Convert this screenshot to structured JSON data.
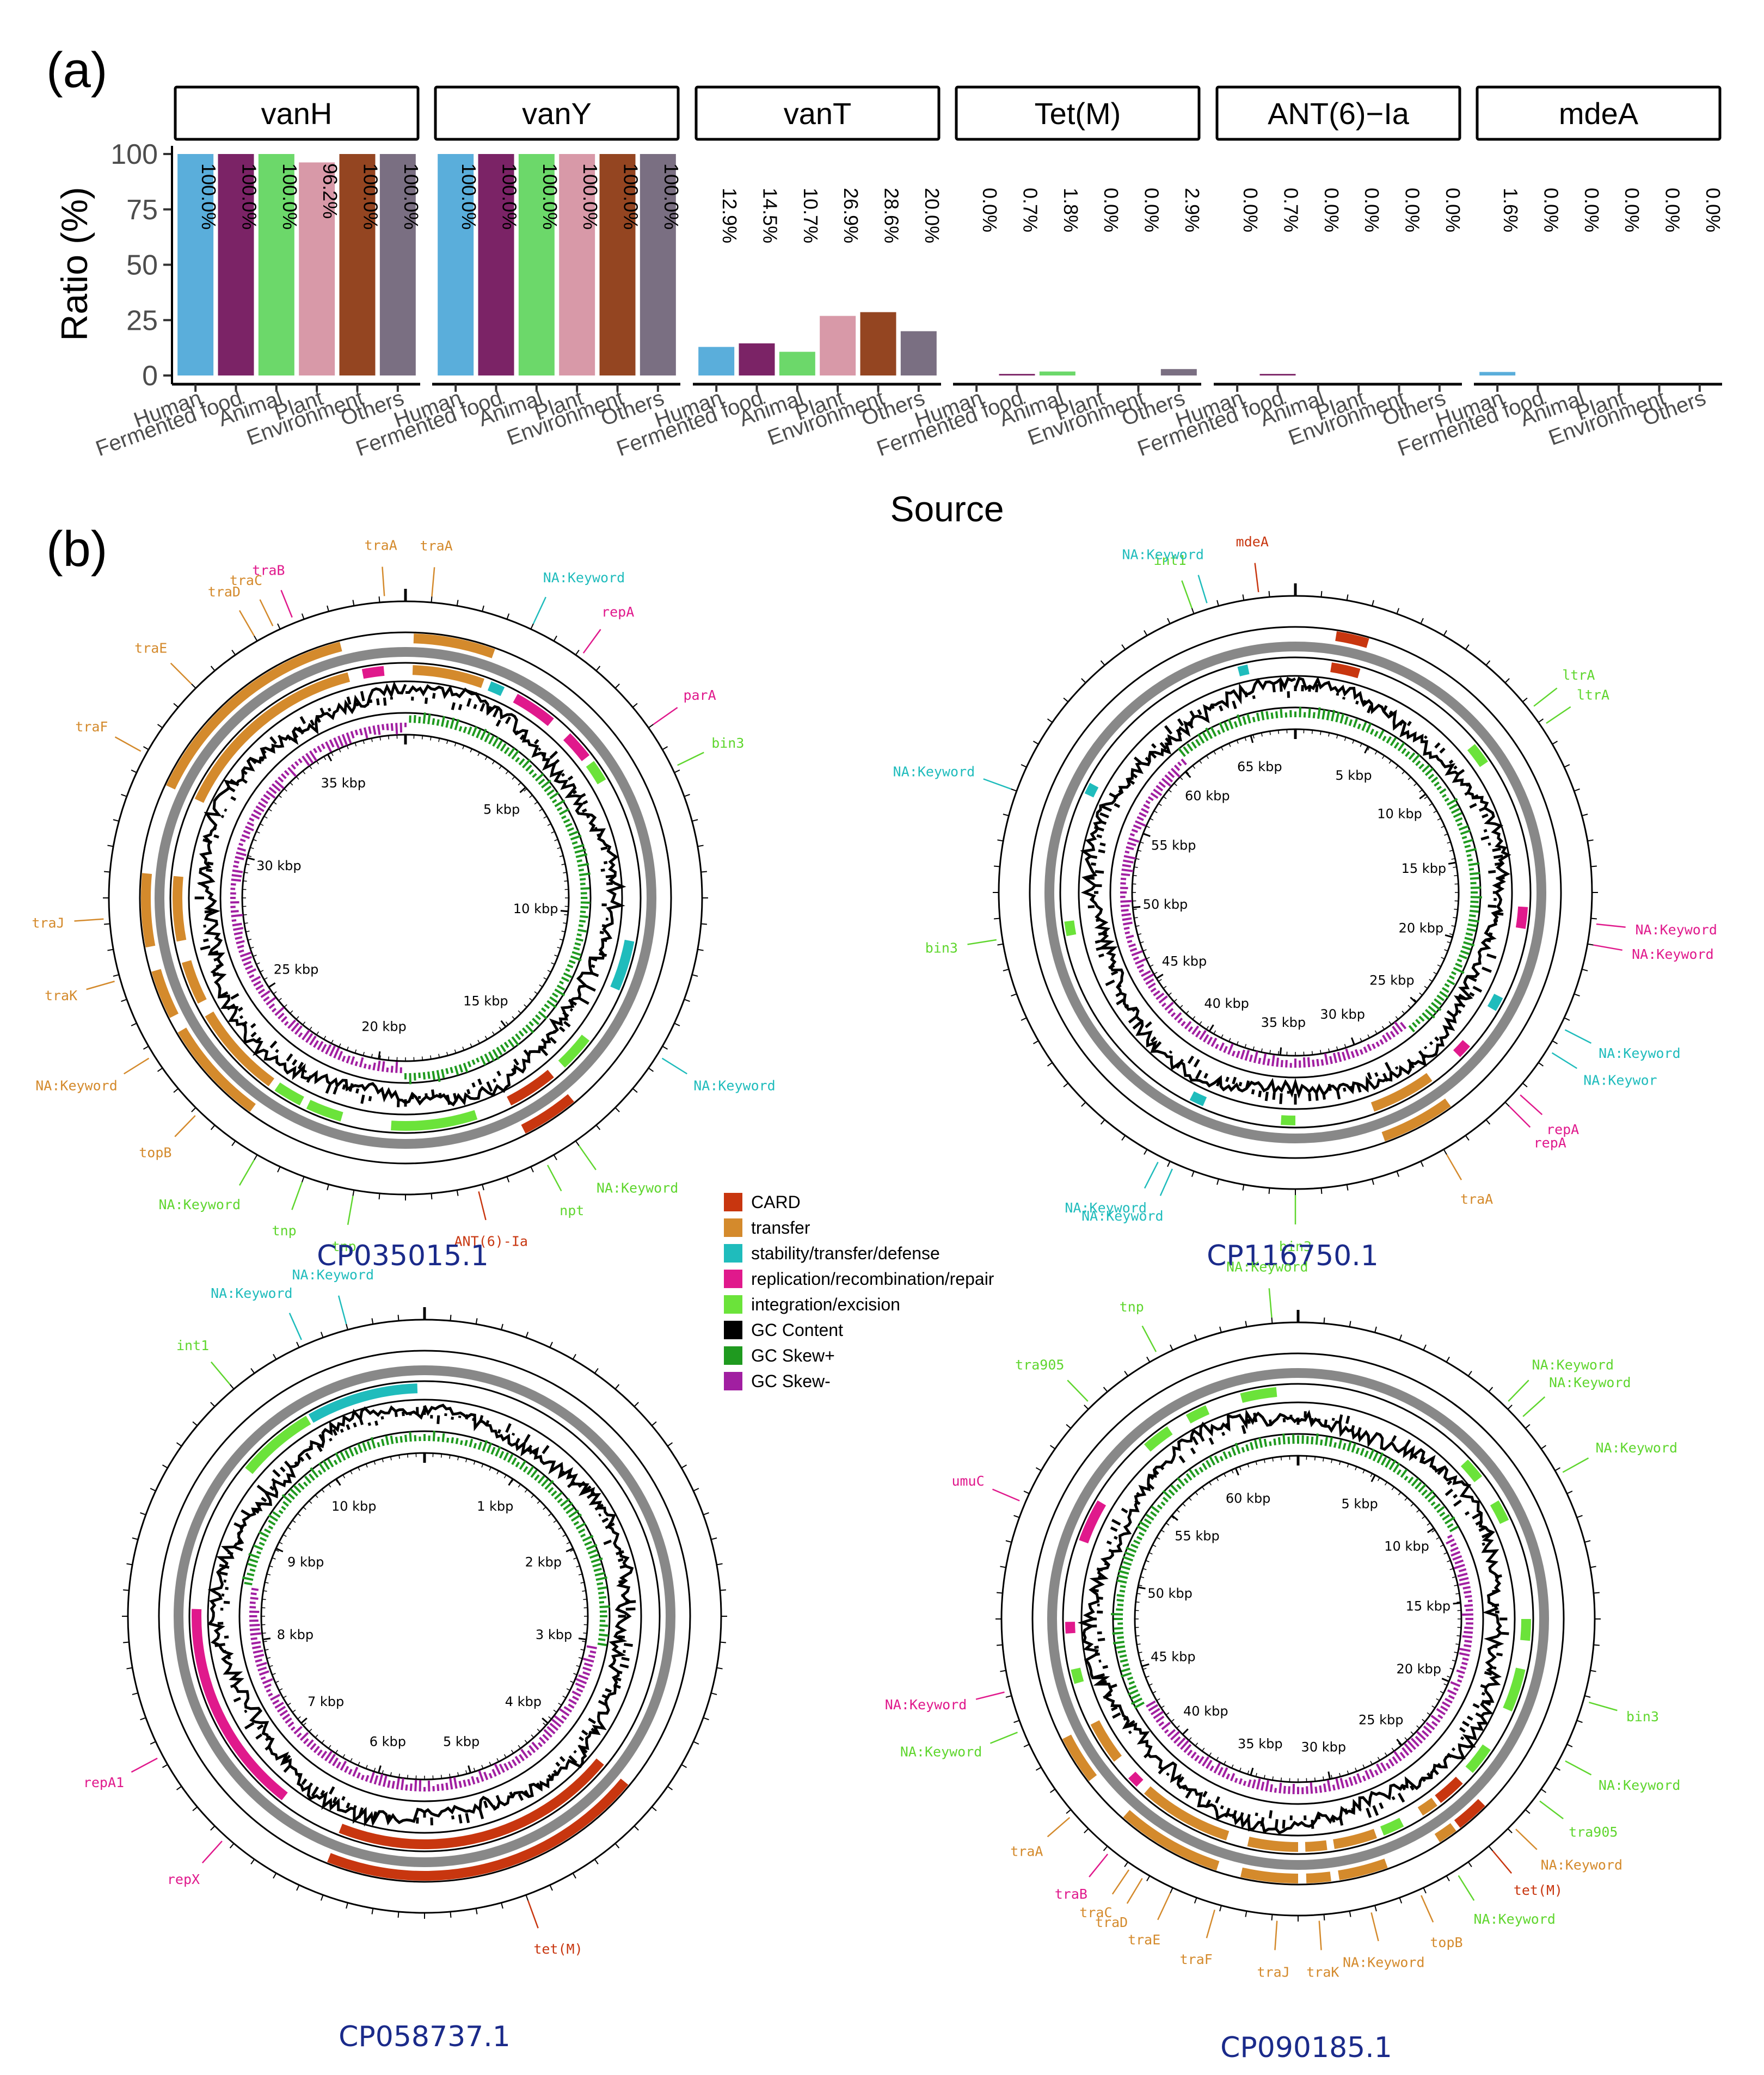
{
  "panel_a": {
    "label": "(a)",
    "ylabel": "Ratio (%)",
    "xlabel": "Source",
    "yticks": [
      "100",
      "75",
      "50",
      "25",
      "0"
    ]
  },
  "panel_b": {
    "label": "(b)"
  },
  "colors": {
    "Human": "#5aaedb",
    "Fermented food": "#7b2366",
    "Animal": "#6cd86a",
    "Plant": "#d899a8",
    "Environment": "#944521",
    "Others": "#7a6f82",
    "CARD": "#c8360f",
    "transfer": "#d48a2c",
    "stability/transfer/defense": "#1fbcbc",
    "replication/recombination/repair": "#e0198c",
    "integration/excision": "#6be33a",
    "GC Content": "#000000",
    "GC Skew+": "#1f9a1f",
    "GC Skew-": "#a11fa1"
  },
  "chart_data": [
    {
      "type": "bar",
      "title": "vanH",
      "categories": [
        "Human",
        "Fermented food",
        "Animal",
        "Plant",
        "Environment",
        "Others"
      ],
      "values": [
        100.0,
        100.0,
        100.0,
        96.2,
        100.0,
        100.0
      ],
      "labels": [
        "100.0%",
        "100.0%",
        "100.0%",
        "96.2%",
        "100.0%",
        "100.0%"
      ],
      "xlabel": "Source",
      "ylabel": "Ratio (%)",
      "ylim": [
        0,
        100
      ]
    },
    {
      "type": "bar",
      "title": "vanY",
      "categories": [
        "Human",
        "Fermented food",
        "Animal",
        "Plant",
        "Environment",
        "Others"
      ],
      "values": [
        100.0,
        100.0,
        100.0,
        100.0,
        100.0,
        100.0
      ],
      "labels": [
        "100.0%",
        "100.0%",
        "100.0%",
        "100.0%",
        "100.0%",
        "100.0%"
      ],
      "xlabel": "Source",
      "ylabel": "Ratio (%)",
      "ylim": [
        0,
        100
      ]
    },
    {
      "type": "bar",
      "title": "vanT",
      "categories": [
        "Human",
        "Fermented food",
        "Animal",
        "Plant",
        "Environment",
        "Others"
      ],
      "values": [
        12.9,
        14.5,
        10.7,
        26.9,
        28.6,
        20.0
      ],
      "labels": [
        "12.9%",
        "14.5%",
        "10.7%",
        "26.9%",
        "28.6%",
        "20.0%"
      ],
      "xlabel": "Source",
      "ylabel": "Ratio (%)",
      "ylim": [
        0,
        100
      ]
    },
    {
      "type": "bar",
      "title": "Tet(M)",
      "categories": [
        "Human",
        "Fermented food",
        "Animal",
        "Plant",
        "Environment",
        "Others"
      ],
      "values": [
        0.0,
        0.7,
        1.8,
        0.0,
        0.0,
        2.9
      ],
      "labels": [
        "0.0%",
        "0.7%",
        "1.8%",
        "0.0%",
        "0.0%",
        "2.9%"
      ],
      "xlabel": "Source",
      "ylabel": "Ratio (%)",
      "ylim": [
        0,
        100
      ]
    },
    {
      "type": "bar",
      "title": "ANT(6)−Ia",
      "categories": [
        "Human",
        "Fermented food",
        "Animal",
        "Plant",
        "Environment",
        "Others"
      ],
      "values": [
        0.0,
        0.7,
        0.0,
        0.0,
        0.0,
        0.0
      ],
      "labels": [
        "0.0%",
        "0.7%",
        "0.0%",
        "0.0%",
        "0.0%",
        "0.0%"
      ],
      "xlabel": "Source",
      "ylabel": "Ratio (%)",
      "ylim": [
        0,
        100
      ]
    },
    {
      "type": "bar",
      "title": "mdeA",
      "categories": [
        "Human",
        "Fermented food",
        "Animal",
        "Plant",
        "Environment",
        "Others"
      ],
      "values": [
        1.6,
        0.0,
        0.0,
        0.0,
        0.0,
        0.0
      ],
      "labels": [
        "1.6%",
        "0.0%",
        "0.0%",
        "0.0%",
        "0.0%",
        "0.0%"
      ],
      "xlabel": "Source",
      "ylabel": "Ratio (%)",
      "ylim": [
        0,
        100
      ]
    },
    {
      "type": "circular-genome-map",
      "title": "CP035015.1",
      "length_kbp": 38,
      "ticks_kbp": [
        5,
        10,
        15,
        20,
        25,
        30,
        35
      ],
      "tick_labels": [
        "5 kbp",
        "10 kbp",
        "15 kbp",
        "20 kbp",
        "25 kbp",
        "30 kbp",
        "35 kbp"
      ],
      "features": [
        {
          "s": 0.5,
          "e": 5.5,
          "cat": "transfer"
        },
        {
          "s": 6.0,
          "e": 7.0,
          "cat": "stability/transfer/defense"
        },
        {
          "s": 8.0,
          "e": 11.0,
          "cat": "replication/recombination/repair"
        },
        {
          "s": 12.5,
          "e": 14.5,
          "cat": "replication/recombination/repair"
        },
        {
          "s": 15.0,
          "e": 16.5,
          "cat": "integration/excision"
        },
        {
          "s": 28.0,
          "e": 31.5,
          "cat": "stability/transfer/defense"
        },
        {
          "s": 35.5,
          "e": 38.0,
          "cat": "integration/excision"
        },
        {
          "s": 39.0,
          "e": 42.5,
          "cat": "CARD"
        },
        {
          "s": 45.0,
          "e": 51.0,
          "cat": "integration/excision"
        },
        {
          "s": 54.5,
          "e": 57.0,
          "cat": "integration/excision"
        },
        {
          "s": 57.5,
          "e": 59.5,
          "cat": "integration/excision"
        },
        {
          "s": 60.0,
          "e": 66.5,
          "cat": "transfer"
        },
        {
          "s": 67.5,
          "e": 70.5,
          "cat": "transfer"
        },
        {
          "s": 72.0,
          "e": 76.5,
          "cat": "transfer"
        },
        {
          "s": 82.0,
          "e": 96.0,
          "cat": "transfer"
        },
        {
          "s": 97.0,
          "e": 98.5,
          "cat": "replication/recombination/repair"
        }
      ],
      "labels": [
        {
          "t": "traB",
          "a": -22,
          "cat": "replication/recombination/repair"
        },
        {
          "t": "traA",
          "a": -4,
          "cat": "transfer"
        },
        {
          "t": "traA",
          "a": 5,
          "cat": "transfer"
        },
        {
          "t": "NA:Keyword",
          "a": 25,
          "cat": "stability/transfer/defense"
        },
        {
          "t": "repA",
          "a": 36,
          "cat": "replication/recombination/repair"
        },
        {
          "t": "parA",
          "a": 55,
          "cat": "replication/recombination/repair"
        },
        {
          "t": "bin3",
          "a": 64,
          "cat": "integration/excision"
        },
        {
          "t": "NA:Keyword",
          "a": 122,
          "cat": "stability/transfer/defense"
        },
        {
          "t": "NA:Keyword",
          "a": 145,
          "cat": "integration/excision"
        },
        {
          "t": "npt",
          "a": 152,
          "cat": "integration/excision"
        },
        {
          "t": "ANT(6)-Ia",
          "a": 166,
          "cat": "CARD"
        },
        {
          "t": "tnp",
          "a": 190,
          "cat": "integration/excision"
        },
        {
          "t": "tnp",
          "a": 200,
          "cat": "integration/excision"
        },
        {
          "t": "NA:Keyword",
          "a": 210,
          "cat": "integration/excision"
        },
        {
          "t": "topB",
          "a": 224,
          "cat": "transfer"
        },
        {
          "t": "NA:Keyword",
          "a": 238,
          "cat": "transfer"
        },
        {
          "t": "traK",
          "a": 254,
          "cat": "transfer"
        },
        {
          "t": "traJ",
          "a": 266,
          "cat": "transfer"
        },
        {
          "t": "traF",
          "a": 299,
          "cat": "transfer"
        },
        {
          "t": "traE",
          "a": 315,
          "cat": "transfer"
        },
        {
          "t": "traD",
          "a": 330,
          "cat": "transfer"
        },
        {
          "t": "traC",
          "a": 334,
          "cat": "transfer"
        }
      ]
    },
    {
      "type": "circular-genome-map",
      "title": "CP116750.1",
      "length_kbp": 68,
      "ticks_kbp": [
        5,
        10,
        15,
        20,
        25,
        30,
        35,
        40,
        45,
        50,
        55,
        60,
        65
      ],
      "tick_labels": [
        "5 kbp",
        "10 kbp",
        "15 kbp",
        "20 kbp",
        "25 kbp",
        "30 kbp",
        "35 kbp",
        "40 kbp",
        "45 kbp",
        "50 kbp",
        "55 kbp",
        "60 kbp",
        "65 kbp"
      ],
      "features": [
        {
          "s": 2.5,
          "e": 4.5,
          "cat": "CARD"
        },
        {
          "s": 14.0,
          "e": 15.5,
          "cat": "integration/excision"
        },
        {
          "s": 26.0,
          "e": 27.5,
          "cat": "replication/recombination/repair"
        },
        {
          "s": 32.5,
          "e": 33.5,
          "cat": "stability/transfer/defense"
        },
        {
          "s": 36.5,
          "e": 37.5,
          "cat": "replication/recombination/repair"
        },
        {
          "s": 40.0,
          "e": 44.5,
          "cat": "transfer"
        },
        {
          "s": 50.0,
          "e": 51.0,
          "cat": "integration/excision"
        },
        {
          "s": 56.5,
          "e": 57.5,
          "cat": "stability/transfer/defense"
        },
        {
          "s": 72.0,
          "e": 73.0,
          "cat": "integration/excision"
        },
        {
          "s": 82.0,
          "e": 82.8,
          "cat": "stability/transfer/defense"
        },
        {
          "s": 96.0,
          "e": 96.7,
          "cat": "stability/transfer/defense"
        }
      ],
      "labels": [
        {
          "t": "int1",
          "a": -20,
          "cat": "integration/excision"
        },
        {
          "t": "NA:Keyword",
          "a": -17,
          "cat": "stability/transfer/defense"
        },
        {
          "t": "mdeA",
          "a": -7,
          "cat": "CARD"
        },
        {
          "t": "ltrA",
          "a": 52,
          "cat": "integration/excision"
        },
        {
          "t": "ltrA",
          "a": 56,
          "cat": "integration/excision"
        },
        {
          "t": "NA:Keyword",
          "a": 96,
          "cat": "replication/recombination/repair"
        },
        {
          "t": "NA:Keyword",
          "a": 100,
          "cat": "replication/recombination/repair"
        },
        {
          "t": "NA:Keyword",
          "a": 117,
          "cat": "stability/transfer/defense"
        },
        {
          "t": "NA:Keywor",
          "a": 122,
          "cat": "stability/transfer/defense"
        },
        {
          "t": "repA",
          "a": 132,
          "cat": "replication/recombination/repair"
        },
        {
          "t": "repA",
          "a": 135,
          "cat": "replication/recombination/repair"
        },
        {
          "t": "traA",
          "a": 150,
          "cat": "transfer"
        },
        {
          "t": "bin3",
          "a": 180,
          "cat": "integration/excision"
        },
        {
          "t": "NA:Keyword",
          "a": 204,
          "cat": "stability/transfer/defense"
        },
        {
          "t": "NA:Keyword",
          "a": 207,
          "cat": "stability/transfer/defense"
        },
        {
          "t": "bin3",
          "a": 261,
          "cat": "integration/excision"
        },
        {
          "t": "NA:Keyword",
          "a": 290,
          "cat": "stability/transfer/defense"
        }
      ]
    },
    {
      "type": "circular-genome-map",
      "title": "CP058737.1",
      "length_kbp": 11,
      "ticks_kbp": [
        1,
        2,
        3,
        4,
        5,
        6,
        7,
        8,
        9,
        10
      ],
      "tick_labels": [
        "1 kbp",
        "2 kbp",
        "3 kbp",
        "4 kbp",
        "5 kbp",
        "6 kbp",
        "7 kbp",
        "8 kbp",
        "9 kbp",
        "10 kbp"
      ],
      "features": [
        {
          "s": 36.0,
          "e": 56.0,
          "cat": "CARD"
        },
        {
          "s": 60.5,
          "e": 75.5,
          "cat": "replication/recombination/repair"
        },
        {
          "s": 86.0,
          "e": 91.5,
          "cat": "integration/excision"
        },
        {
          "s": 91.7,
          "e": 99.5,
          "cat": "stability/transfer/defense"
        }
      ],
      "labels": [
        {
          "t": "NA:Keyword",
          "a": -15,
          "cat": "stability/transfer/defense"
        },
        {
          "t": "NA:Keyword",
          "a": -24,
          "cat": "stability/transfer/defense"
        },
        {
          "t": "int1",
          "a": -40,
          "cat": "integration/excision"
        },
        {
          "t": "repA1",
          "a": 242,
          "cat": "replication/recombination/repair"
        },
        {
          "t": "repX",
          "a": 222,
          "cat": "replication/recombination/repair"
        },
        {
          "t": "tet(M)",
          "a": 160,
          "cat": "CARD"
        }
      ]
    },
    {
      "type": "circular-genome-map",
      "title": "CP090185.1",
      "length_kbp": 64,
      "ticks_kbp": [
        5,
        10,
        15,
        20,
        25,
        30,
        35,
        40,
        45,
        50,
        55,
        60
      ],
      "tick_labels": [
        "5 kbp",
        "10 kbp",
        "15 kbp",
        "20 kbp",
        "25 kbp",
        "30 kbp",
        "35 kbp",
        "40 kbp",
        "45 kbp",
        "50 kbp",
        "55 kbp",
        "60 kbp"
      ],
      "features": [
        {
          "s": 96.0,
          "e": 98.5,
          "cat": "integration/excision"
        },
        {
          "s": 13.0,
          "e": 14.5,
          "cat": "integration/excision"
        },
        {
          "s": 16.5,
          "e": 18.0,
          "cat": "integration/excision"
        },
        {
          "s": 25.0,
          "e": 26.5,
          "cat": "integration/excision"
        },
        {
          "s": 28.5,
          "e": 31.5,
          "cat": "integration/excision"
        },
        {
          "s": 34.5,
          "e": 36.5,
          "cat": "integration/excision"
        },
        {
          "s": 37.5,
          "e": 39.5,
          "cat": "CARD"
        },
        {
          "s": 39.8,
          "e": 41.0,
          "cat": "transfer"
        },
        {
          "s": 42.5,
          "e": 44.0,
          "cat": "integration/excision"
        },
        {
          "s": 44.5,
          "e": 47.5,
          "cat": "transfer"
        },
        {
          "s": 48.0,
          "e": 49.5,
          "cat": "transfer"
        },
        {
          "s": 50.0,
          "e": 53.5,
          "cat": "transfer"
        },
        {
          "s": 55.0,
          "e": 61.5,
          "cat": "transfer"
        },
        {
          "s": 62.2,
          "e": 63.0,
          "cat": "replication/recombination/repair"
        },
        {
          "s": 64.5,
          "e": 67.5,
          "cat": "transfer"
        },
        {
          "s": 70.5,
          "e": 71.5,
          "cat": "integration/excision"
        },
        {
          "s": 74.0,
          "e": 74.8,
          "cat": "replication/recombination/repair"
        },
        {
          "s": 80.5,
          "e": 83.5,
          "cat": "replication/recombination/repair"
        },
        {
          "s": 88.5,
          "e": 90.5,
          "cat": "integration/excision"
        },
        {
          "s": 92.0,
          "e": 93.5,
          "cat": "integration/excision"
        }
      ],
      "labels": [
        {
          "t": "NA:Keyword",
          "a": -5,
          "cat": "integration/excision"
        },
        {
          "t": "tnp",
          "a": -28,
          "cat": "integration/excision"
        },
        {
          "t": "tra905",
          "a": -44,
          "cat": "integration/excision"
        },
        {
          "t": "NA:Keyword",
          "a": 44,
          "cat": "integration/excision"
        },
        {
          "t": "NA:Keyword",
          "a": 48,
          "cat": "integration/excision"
        },
        {
          "t": "NA:Keyword",
          "a": 61,
          "cat": "integration/excision"
        },
        {
          "t": "bin3",
          "a": 106,
          "cat": "integration/excision"
        },
        {
          "t": "NA:Keyword",
          "a": 118,
          "cat": "integration/excision"
        },
        {
          "t": "tra905",
          "a": 127,
          "cat": "integration/excision"
        },
        {
          "t": "NA:Keyword",
          "a": 134,
          "cat": "transfer"
        },
        {
          "t": "tet(M)",
          "a": 140,
          "cat": "CARD"
        },
        {
          "t": "NA:Keyword",
          "a": 148,
          "cat": "integration/excision"
        },
        {
          "t": "topB",
          "a": 156,
          "cat": "transfer"
        },
        {
          "t": "NA:Keyword",
          "a": 166,
          "cat": "transfer"
        },
        {
          "t": "traK",
          "a": 176,
          "cat": "transfer"
        },
        {
          "t": "traJ",
          "a": 184,
          "cat": "transfer"
        },
        {
          "t": "traF",
          "a": 196,
          "cat": "transfer"
        },
        {
          "t": "traE",
          "a": 205,
          "cat": "transfer"
        },
        {
          "t": "traD",
          "a": 211,
          "cat": "transfer"
        },
        {
          "t": "traC",
          "a": 214,
          "cat": "transfer"
        },
        {
          "t": "traB",
          "a": 219,
          "cat": "replication/recombination/repair"
        },
        {
          "t": "traA",
          "a": 229,
          "cat": "transfer"
        },
        {
          "t": "NA:Keyword",
          "a": 248,
          "cat": "integration/excision"
        },
        {
          "t": "NA:Keyword",
          "a": 256,
          "cat": "replication/recombination/repair"
        },
        {
          "t": "umuC",
          "a": 293,
          "cat": "replication/recombination/repair"
        }
      ]
    }
  ],
  "legend": {
    "items": [
      "CARD",
      "transfer",
      "stability/transfer/defense",
      "replication/recombination/repair",
      "integration/excision",
      "GC Content",
      "GC Skew+",
      "GC Skew-"
    ]
  }
}
